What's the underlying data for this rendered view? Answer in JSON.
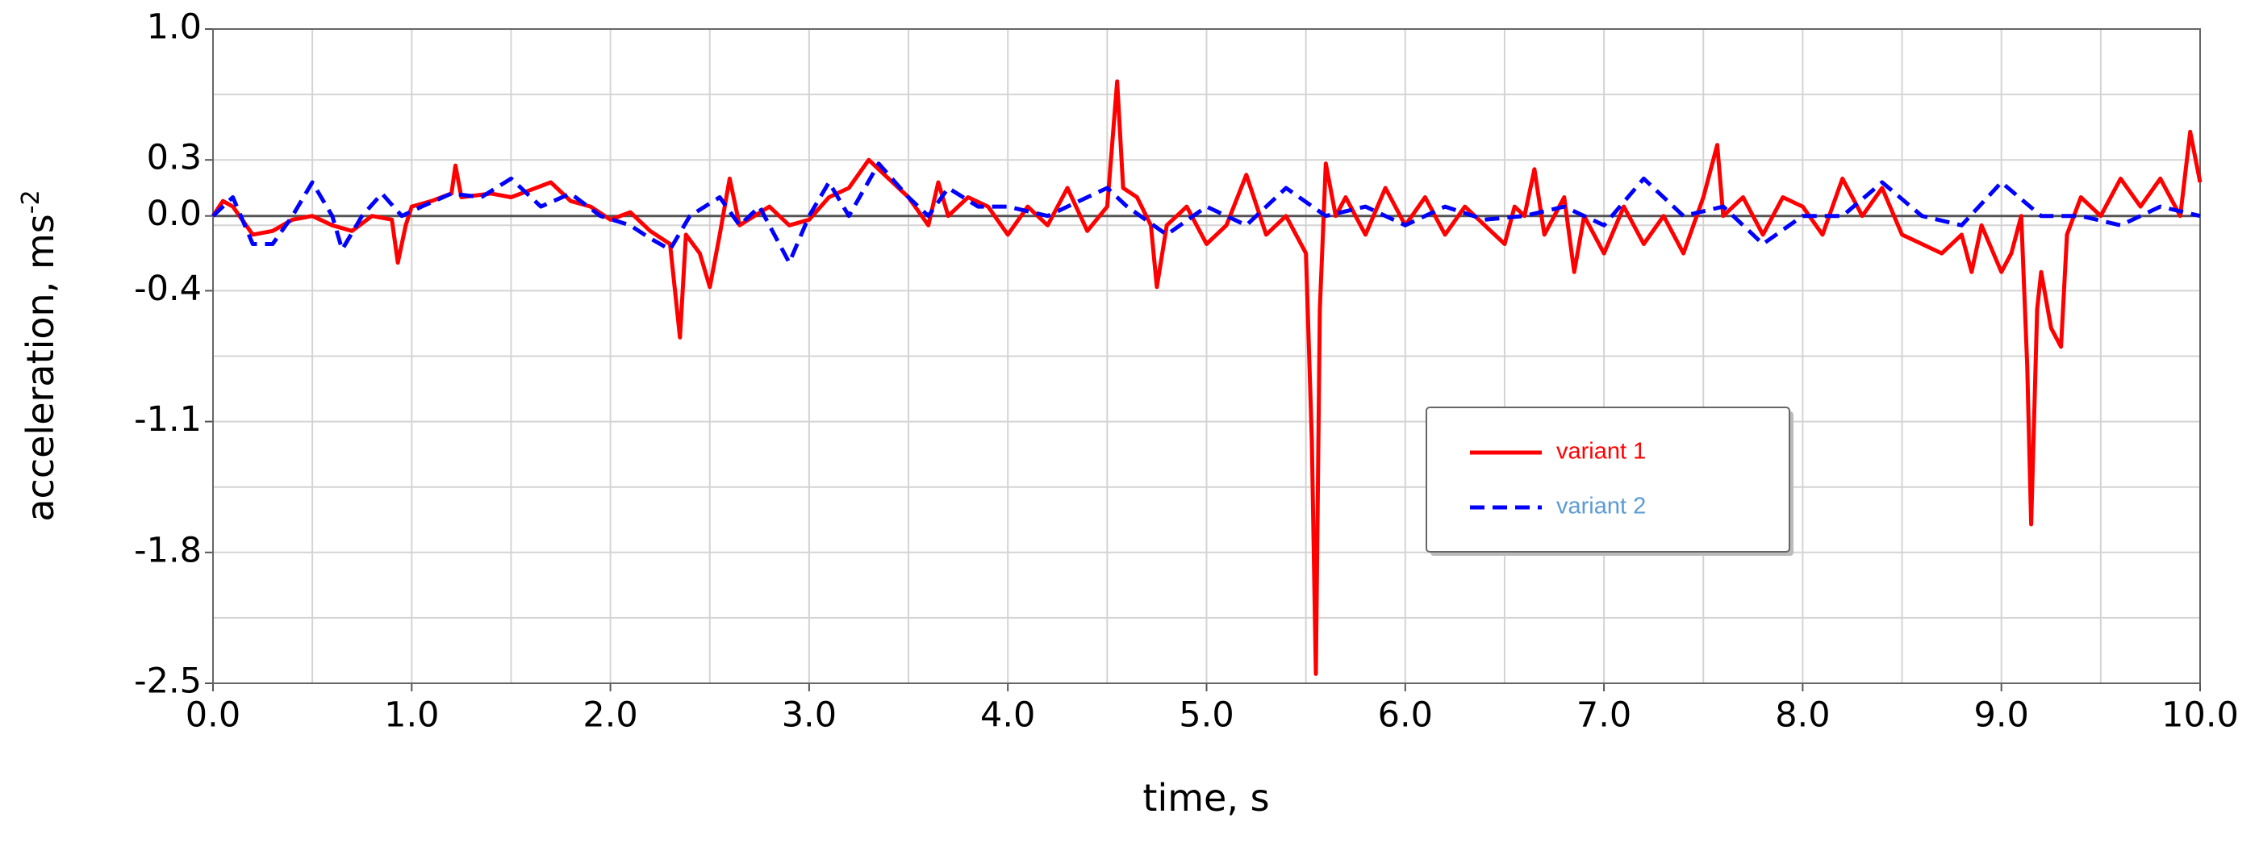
{
  "chart_data": {
    "type": "line",
    "xlabel": "time, s",
    "ylabel": "acceleration, ms",
    "ylabel_sup": "-2",
    "xlim": [
      0,
      10
    ],
    "ylim": [
      -2.5,
      1.0
    ],
    "xticks": [
      {
        "value": 0,
        "label": "0.0"
      },
      {
        "value": 1,
        "label": "1.0"
      },
      {
        "value": 2,
        "label": "2.0"
      },
      {
        "value": 3,
        "label": "3.0"
      },
      {
        "value": 4,
        "label": "4.0"
      },
      {
        "value": 5,
        "label": "5.0"
      },
      {
        "value": 6,
        "label": "6.0"
      },
      {
        "value": 7,
        "label": "7.0"
      },
      {
        "value": 8,
        "label": "8.0"
      },
      {
        "value": 9,
        "label": "9.0"
      },
      {
        "value": 10,
        "label": "10.0"
      }
    ],
    "x_minor_grid": [
      0.5,
      1.5,
      2.5,
      3.5,
      4.5,
      5.5,
      6.5,
      7.5,
      8.5,
      9.5
    ],
    "yticks": [
      {
        "value": 1,
        "label": "1.0"
      },
      0.3,
      {
        "value": 0,
        "label": "0.0"
      },
      -0.4,
      -1.1,
      -1.8,
      -2.5
    ],
    "y_minor_grid": [
      0.65,
      -0.05,
      -0.75,
      -1.45,
      -2.15
    ],
    "grid": true,
    "legend": "center-right",
    "series": [
      {
        "name": "variant 1",
        "color": "#ff0000",
        "label_color": "#ff0000",
        "dash": false,
        "x": [
          0.0,
          0.05,
          0.1,
          0.2,
          0.3,
          0.4,
          0.5,
          0.6,
          0.7,
          0.8,
          0.9,
          0.93,
          0.97,
          1.0,
          1.1,
          1.2,
          1.22,
          1.25,
          1.4,
          1.5,
          1.6,
          1.7,
          1.8,
          1.9,
          2.0,
          2.1,
          2.2,
          2.3,
          2.35,
          2.38,
          2.45,
          2.5,
          2.55,
          2.6,
          2.65,
          2.8,
          2.9,
          3.0,
          3.1,
          3.2,
          3.3,
          3.4,
          3.5,
          3.6,
          3.65,
          3.7,
          3.8,
          3.9,
          4.0,
          4.1,
          4.2,
          4.3,
          4.4,
          4.5,
          4.55,
          4.58,
          4.65,
          4.72,
          4.75,
          4.8,
          4.9,
          5.0,
          5.1,
          5.2,
          5.3,
          5.4,
          5.5,
          5.53,
          5.55,
          5.57,
          5.6,
          5.65,
          5.7,
          5.8,
          5.9,
          6.0,
          6.1,
          6.2,
          6.3,
          6.4,
          6.5,
          6.55,
          6.6,
          6.65,
          6.7,
          6.8,
          6.85,
          6.9,
          7.0,
          7.1,
          7.2,
          7.3,
          7.4,
          7.5,
          7.57,
          7.6,
          7.7,
          7.8,
          7.9,
          8.0,
          8.1,
          8.2,
          8.3,
          8.4,
          8.5,
          8.6,
          8.7,
          8.8,
          8.85,
          8.9,
          9.0,
          9.05,
          9.1,
          9.13,
          9.15,
          9.18,
          9.2,
          9.25,
          9.3,
          9.33,
          9.4,
          9.5,
          9.6,
          9.7,
          9.8,
          9.9,
          9.95,
          10.0
        ],
        "values": [
          0.0,
          0.08,
          0.05,
          -0.1,
          -0.08,
          -0.02,
          0.0,
          -0.05,
          -0.08,
          0.0,
          -0.02,
          -0.25,
          -0.05,
          0.05,
          0.08,
          0.12,
          0.27,
          0.1,
          0.12,
          0.1,
          0.14,
          0.18,
          0.08,
          0.05,
          -0.02,
          0.02,
          -0.08,
          -0.15,
          -0.65,
          -0.1,
          -0.2,
          -0.38,
          -0.1,
          0.2,
          -0.05,
          0.05,
          -0.05,
          -0.02,
          0.1,
          0.15,
          0.3,
          0.2,
          0.1,
          -0.05,
          0.18,
          0.0,
          0.1,
          0.05,
          -0.1,
          0.05,
          -0.05,
          0.15,
          -0.08,
          0.05,
          0.72,
          0.15,
          0.1,
          -0.05,
          -0.38,
          -0.05,
          0.05,
          -0.15,
          -0.05,
          0.22,
          -0.1,
          0.0,
          -0.2,
          -1.2,
          -2.45,
          -0.5,
          0.28,
          0.0,
          0.1,
          -0.1,
          0.15,
          -0.05,
          0.1,
          -0.1,
          0.05,
          -0.05,
          -0.15,
          0.05,
          0.0,
          0.25,
          -0.1,
          0.1,
          -0.3,
          0.0,
          -0.2,
          0.05,
          -0.15,
          0.0,
          -0.2,
          0.1,
          0.38,
          0.0,
          0.1,
          -0.1,
          0.1,
          0.05,
          -0.1,
          0.2,
          0.0,
          0.15,
          -0.1,
          -0.15,
          -0.2,
          -0.1,
          -0.3,
          -0.05,
          -0.3,
          -0.2,
          0.0,
          -0.8,
          -1.65,
          -0.5,
          -0.3,
          -0.6,
          -0.7,
          -0.1,
          0.1,
          0.0,
          0.2,
          0.05,
          0.2,
          0.0,
          0.45,
          0.18
        ]
      },
      {
        "name": "variant 2",
        "color": "#0000ff",
        "label_color": "#5b9bd5",
        "dash": true,
        "x": [
          0.0,
          0.1,
          0.2,
          0.3,
          0.4,
          0.5,
          0.6,
          0.65,
          0.75,
          0.85,
          0.95,
          1.05,
          1.2,
          1.35,
          1.5,
          1.65,
          1.8,
          1.95,
          2.1,
          2.2,
          2.3,
          2.4,
          2.55,
          2.65,
          2.75,
          2.9,
          3.0,
          3.1,
          3.2,
          3.35,
          3.5,
          3.6,
          3.7,
          3.85,
          4.0,
          4.2,
          4.4,
          4.5,
          4.6,
          4.8,
          5.0,
          5.2,
          5.4,
          5.6,
          5.8,
          6.0,
          6.2,
          6.4,
          6.6,
          6.8,
          7.0,
          7.2,
          7.4,
          7.6,
          7.8,
          8.0,
          8.2,
          8.4,
          8.6,
          8.8,
          9.0,
          9.2,
          9.4,
          9.6,
          9.8,
          10.0
        ],
        "values": [
          0.0,
          0.1,
          -0.15,
          -0.15,
          0.0,
          0.18,
          0.0,
          -0.18,
          0.0,
          0.12,
          0.0,
          0.05,
          0.12,
          0.1,
          0.2,
          0.05,
          0.12,
          0.0,
          -0.05,
          -0.12,
          -0.18,
          0.0,
          0.1,
          -0.05,
          0.05,
          -0.25,
          0.0,
          0.18,
          0.0,
          0.28,
          0.1,
          0.0,
          0.15,
          0.05,
          0.05,
          0.0,
          0.1,
          0.15,
          0.05,
          -0.1,
          0.05,
          -0.05,
          0.15,
          0.0,
          0.05,
          -0.05,
          0.05,
          -0.02,
          0.0,
          0.05,
          -0.05,
          0.2,
          0.0,
          0.05,
          -0.15,
          0.0,
          0.0,
          0.18,
          0.0,
          -0.05,
          0.18,
          0.0,
          0.0,
          -0.05,
          0.05,
          0.0
        ]
      }
    ]
  }
}
